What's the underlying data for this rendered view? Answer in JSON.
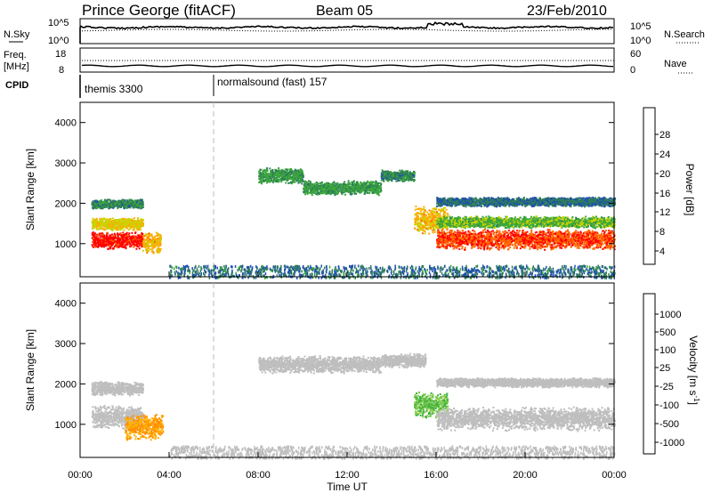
{
  "header": {
    "station": "Prince George (fitACF)",
    "beam": "Beam 05",
    "date": "23/Feb/2010"
  },
  "noise_panel": {
    "left_label": "N.Sky",
    "right_label": "N.Search",
    "left_ticks": [
      "10^5",
      "10^0"
    ],
    "right_ticks": [
      "10^5",
      "10^0"
    ]
  },
  "freq_panel": {
    "left_label_1": "Freq.",
    "left_label_2": "[MHz]",
    "right_label": "Nave",
    "left_ticks": [
      "18",
      "8"
    ],
    "right_ticks": [
      "60",
      "0"
    ]
  },
  "cpid": {
    "label": "CPID",
    "segments": [
      {
        "label": "themis 3300",
        "start_hour": 0
      },
      {
        "label": "normalsound (fast) 157",
        "start_hour": 6
      }
    ]
  },
  "colors": {
    "power_scale": [
      "#0000ff",
      "#1f4fb0",
      "#2e7d5b",
      "#3aa63a",
      "#c8d400",
      "#ffaa00",
      "#ff6a00",
      "#ff0000"
    ],
    "velocity_scale": [
      "#1030c0",
      "#2a6a40",
      "#3fb03f",
      "#8cd050",
      "#bebebe",
      "#ffb000",
      "#ff8a00",
      "#ff4000",
      "#ff0000"
    ]
  },
  "chart_data": [
    {
      "type": "heatmap",
      "name": "power",
      "xlabel": "",
      "ylabel": "Slant Range [km]",
      "x_range_hours": [
        0,
        24
      ],
      "ylim": [
        180,
        4500
      ],
      "yticks": [
        "1000",
        "2000",
        "3000",
        "4000"
      ],
      "colorbar": {
        "label": "Power [dB]",
        "ticks": [
          "28",
          "24",
          "20",
          "16",
          "12",
          "8",
          "4"
        ],
        "range": [
          0,
          30
        ]
      },
      "scatter_bands": [
        {
          "x_start": 0.5,
          "x_end": 2.8,
          "y_center": 1100,
          "y_halfwidth": 220,
          "value": 28
        },
        {
          "x_start": 0.5,
          "x_end": 2.8,
          "y_center": 1500,
          "y_halfwidth": 160,
          "value": 18
        },
        {
          "x_start": 0.5,
          "x_end": 2.8,
          "y_center": 2000,
          "y_halfwidth": 120,
          "value": 10
        },
        {
          "x_start": 2.8,
          "x_end": 3.6,
          "y_center": 1050,
          "y_halfwidth": 280,
          "value": 20
        },
        {
          "x_start": 8.0,
          "x_end": 10.0,
          "y_center": 2700,
          "y_halfwidth": 200,
          "value": 12
        },
        {
          "x_start": 10.0,
          "x_end": 13.5,
          "y_center": 2400,
          "y_halfwidth": 180,
          "value": 12
        },
        {
          "x_start": 13.5,
          "x_end": 15.0,
          "y_center": 2700,
          "y_halfwidth": 150,
          "value": 10
        },
        {
          "x_start": 15.0,
          "x_end": 16.5,
          "y_center": 1600,
          "y_halfwidth": 350,
          "value": 20
        },
        {
          "x_start": 16.0,
          "x_end": 24.0,
          "y_center": 1120,
          "y_halfwidth": 260,
          "value": 26
        },
        {
          "x_start": 16.0,
          "x_end": 24.0,
          "y_center": 1550,
          "y_halfwidth": 150,
          "value": 14
        },
        {
          "x_start": 16.0,
          "x_end": 24.0,
          "y_center": 2050,
          "y_halfwidth": 120,
          "value": 8
        }
      ]
    },
    {
      "type": "heatmap",
      "name": "velocity",
      "xlabel": "Time UT",
      "ylabel": "Slant Range [km]",
      "x_range_hours": [
        0,
        24
      ],
      "x_ticks": [
        "00:00",
        "04:00",
        "08:00",
        "12:00",
        "16:00",
        "20:00",
        "00:00"
      ],
      "ylim": [
        180,
        4500
      ],
      "yticks": [
        "1000",
        "2000",
        "3000",
        "4000"
      ],
      "colorbar": {
        "label": "Velocity [m s",
        "label_sup": "-1",
        "label_end": "]",
        "ticks": [
          "1000",
          "500",
          "100",
          "25",
          "-25",
          "-100",
          "-500",
          "-1000"
        ]
      },
      "scatter_bands": [
        {
          "x_start": 0.5,
          "x_end": 2.8,
          "y_center": 1200,
          "y_halfwidth": 300,
          "value": 0
        },
        {
          "x_start": 0.5,
          "x_end": 2.8,
          "y_center": 1900,
          "y_halfwidth": 180,
          "value": 0
        },
        {
          "x_start": 2.0,
          "x_end": 3.7,
          "y_center": 950,
          "y_halfwidth": 350,
          "value": -200
        },
        {
          "x_start": 8.0,
          "x_end": 13.5,
          "y_center": 2500,
          "y_halfwidth": 220,
          "value": 0
        },
        {
          "x_start": 13.5,
          "x_end": 15.5,
          "y_center": 2600,
          "y_halfwidth": 180,
          "value": 0
        },
        {
          "x_start": 15.0,
          "x_end": 16.5,
          "y_center": 1500,
          "y_halfwidth": 350,
          "value": 60
        },
        {
          "x_start": 16.0,
          "x_end": 24.0,
          "y_center": 1150,
          "y_halfwidth": 300,
          "value": 0
        },
        {
          "x_start": 16.0,
          "x_end": 24.0,
          "y_center": 2050,
          "y_halfwidth": 120,
          "value": 0
        }
      ]
    }
  ]
}
